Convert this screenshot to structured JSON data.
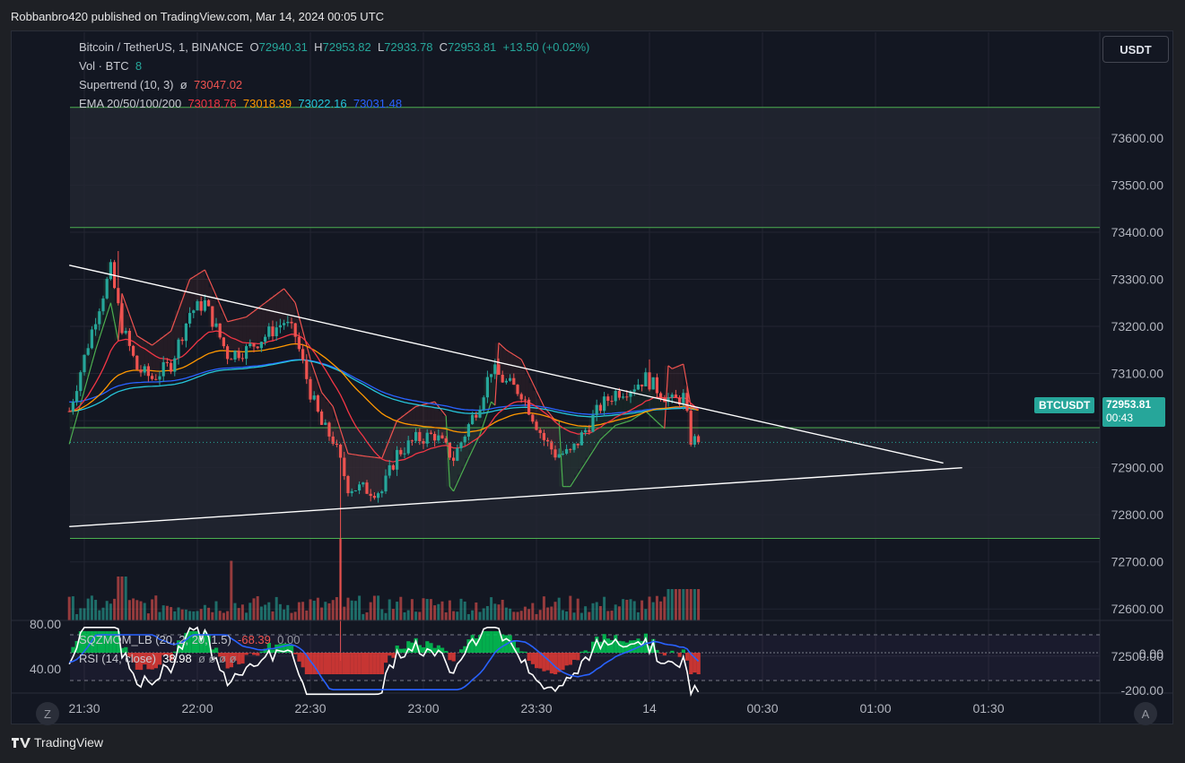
{
  "publisher_line": "Robbanbro420 published on TradingView.com, Mar 14, 2024 00:05 UTC",
  "footer_logo_text": "TradingView",
  "quote_button": "USDT",
  "bottom_left_button": "Z",
  "bottom_right_button": "A",
  "legend": {
    "symbol": "Bitcoin / TetherUS, 1, BINANCE",
    "o_label": "O",
    "o": "72940.31",
    "h_label": "H",
    "h": "72953.82",
    "l_label": "L",
    "l": "72933.78",
    "c_label": "C",
    "c": "72953.81",
    "change": "+13.50 (+0.02%)",
    "vol_label": "Vol · BTC",
    "vol": "8",
    "supertrend_label": "Supertrend (10, 3)",
    "supertrend_sym": "ø",
    "supertrend": "73047.02",
    "ema_label": "EMA 20/50/100/200",
    "ema20": "73018.76",
    "ema50": "73018.39",
    "ema100": "73022.16",
    "ema200": "73031.48"
  },
  "sub_legend": {
    "sqz_label": "SQZMOM_LB (20, 2, 20, 1.5)",
    "sqz_val": "-68.39",
    "sqz_val2": "0.00",
    "rsi_label": "RSI (14, close)",
    "rsi_val": "38.98",
    "rsi_extra": "ø ø ø ø"
  },
  "price_tag": {
    "symbol": "BTCUSDT",
    "price": "72953.81",
    "countdown": "00:43"
  },
  "colors": {
    "up": "#26a69a",
    "down": "#ef5350",
    "ema20": "#f23645",
    "ema50": "#ff9800",
    "ema100": "#26c6da",
    "ema200": "#2962ff",
    "supertrend_up": "#4caf50",
    "supertrend_down": "#ef5350",
    "level_line": "#4caf50",
    "trendline": "#ffffff"
  },
  "chart_data": {
    "type": "candlestick",
    "title": "Bitcoin / TetherUS, 1, BINANCE",
    "y_ticks": [
      "73600.00",
      "73500.00",
      "73400.00",
      "73300.00",
      "73200.00",
      "73100.00",
      "73000.00",
      "72900.00",
      "72800.00",
      "72700.00",
      "72600.00",
      "72500.00"
    ],
    "ylim": [
      72480,
      73690
    ],
    "x_ticks": [
      {
        "t": 0,
        "label": "21:30"
      },
      {
        "t": 30,
        "label": "22:00"
      },
      {
        "t": 60,
        "label": "22:30"
      },
      {
        "t": 90,
        "label": "23:00"
      },
      {
        "t": 120,
        "label": "23:30"
      },
      {
        "t": 150,
        "label": "14"
      },
      {
        "t": 180,
        "label": "00:30"
      },
      {
        "t": 210,
        "label": "01:00"
      },
      {
        "t": 240,
        "label": "01:30"
      }
    ],
    "x_unit": "minutes from 21:30",
    "horizontal_levels": [
      73665,
      73410,
      72985,
      72750
    ],
    "trendlines": [
      {
        "from": [
          -4,
          73330
        ],
        "to": [
          228,
          72910
        ]
      },
      {
        "from": [
          -4,
          72775
        ],
        "to": [
          233,
          72900
        ]
      }
    ],
    "anchors_close": [
      [
        -4,
        73020
      ],
      [
        3,
        73220
      ],
      [
        7,
        73320
      ],
      [
        10,
        73200
      ],
      [
        14,
        73110
      ],
      [
        18,
        73090
      ],
      [
        23,
        73120
      ],
      [
        28,
        73230
      ],
      [
        32,
        73250
      ],
      [
        38,
        73140
      ],
      [
        43,
        73150
      ],
      [
        48,
        73180
      ],
      [
        53,
        73210
      ],
      [
        56,
        73180
      ],
      [
        60,
        73060
      ],
      [
        63,
        72990
      ],
      [
        66,
        72960
      ],
      [
        70,
        72860
      ],
      [
        74,
        72855
      ],
      [
        79,
        72850
      ],
      [
        83,
        72930
      ],
      [
        88,
        72960
      ],
      [
        93,
        72970
      ],
      [
        98,
        72920
      ],
      [
        102,
        72990
      ],
      [
        105,
        73040
      ],
      [
        108,
        73110
      ],
      [
        112,
        73080
      ],
      [
        116,
        73060
      ],
      [
        119,
        73010
      ],
      [
        122,
        72960
      ],
      [
        125,
        72930
      ],
      [
        129,
        72930
      ],
      [
        133,
        72980
      ],
      [
        137,
        73030
      ],
      [
        141,
        73060
      ],
      [
        145,
        73070
      ],
      [
        149,
        73090
      ],
      [
        153,
        73060
      ],
      [
        156,
        73040
      ],
      [
        159,
        73050
      ],
      [
        161,
        72960
      ],
      [
        163,
        72953.81
      ]
    ],
    "ema": {
      "ema20": "73018.76",
      "ema50": "73018.39",
      "ema100": "73022.16",
      "ema200": "73031.48"
    },
    "rsi": {
      "ticks": [
        "80.00",
        "40.00"
      ],
      "last": 38.98
    },
    "sqzmom": {
      "ticks": [
        "0.00",
        "-200.00"
      ],
      "last": -68.39
    }
  }
}
